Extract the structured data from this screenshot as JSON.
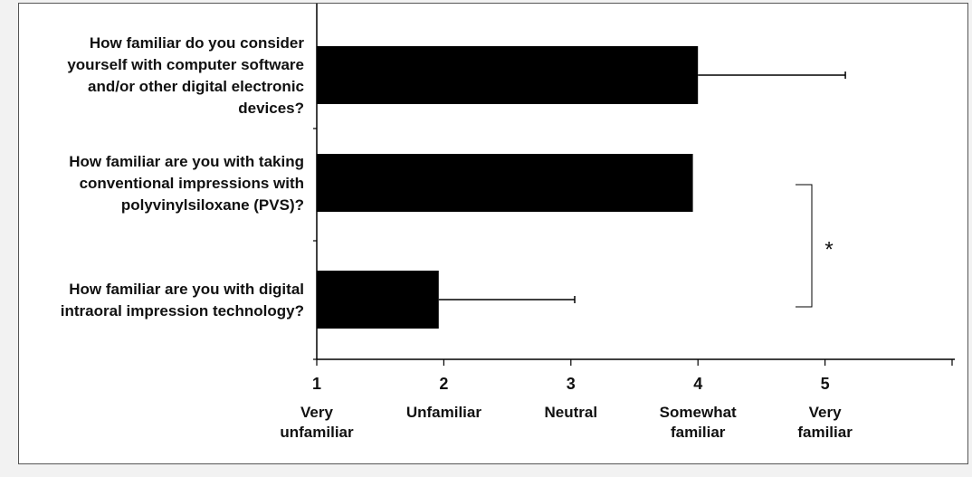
{
  "chart_data": {
    "type": "bar",
    "orientation": "horizontal",
    "categories": [
      [
        "How familiar do you consider",
        "yourself with computer software",
        "and/or other digital electronic",
        "devices?"
      ],
      [
        "How familiar are you with taking",
        "conventional impressions with",
        "polyvinylsiloxane (PVS)?"
      ],
      [
        "How familiar are you with digital",
        "intraoral impression technology?"
      ]
    ],
    "values": [
      4.0,
      3.96,
      1.96
    ],
    "error_bars": [
      1.16,
      0.0,
      1.07
    ],
    "xlim": [
      1,
      6
    ],
    "xticks": [
      1,
      2,
      3,
      4,
      5
    ],
    "xtick_labels": [
      "1",
      "2",
      "3",
      "4",
      "5"
    ],
    "scale_labels": [
      [
        "Very",
        "unfamiliar"
      ],
      [
        "Unfamiliar"
      ],
      [
        "Neutral"
      ],
      [
        "Somewhat",
        "familiar"
      ],
      [
        "Very",
        "familiar"
      ]
    ],
    "significance": {
      "between": [
        1,
        2
      ],
      "label": "*"
    },
    "grid": false,
    "legend": "none",
    "bar_color": "#000000",
    "axis_color": "#000000"
  }
}
